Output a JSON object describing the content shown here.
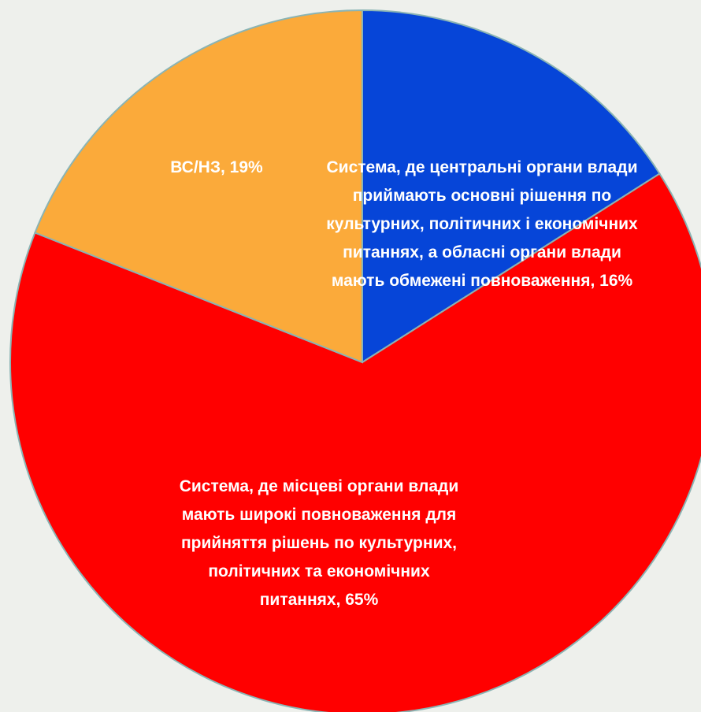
{
  "chart_data": {
    "type": "pie",
    "values": [
      16,
      65,
      19
    ],
    "value_labels": [
      "Система, де центральні органи влади приймають основні рішення по культурних, політичних і економічних питаннях, а обласні органи влади мають обмежені повноваження, 16%",
      "Система, де місцеві органи влади мають широкі повноваження для прийняття рішень по культурних, політичних та економічних питаннях, 65%",
      "ВС/НЗ, 19%"
    ],
    "colors": [
      "#0645d8",
      "#ff0000",
      "#fbaa3a"
    ]
  }
}
